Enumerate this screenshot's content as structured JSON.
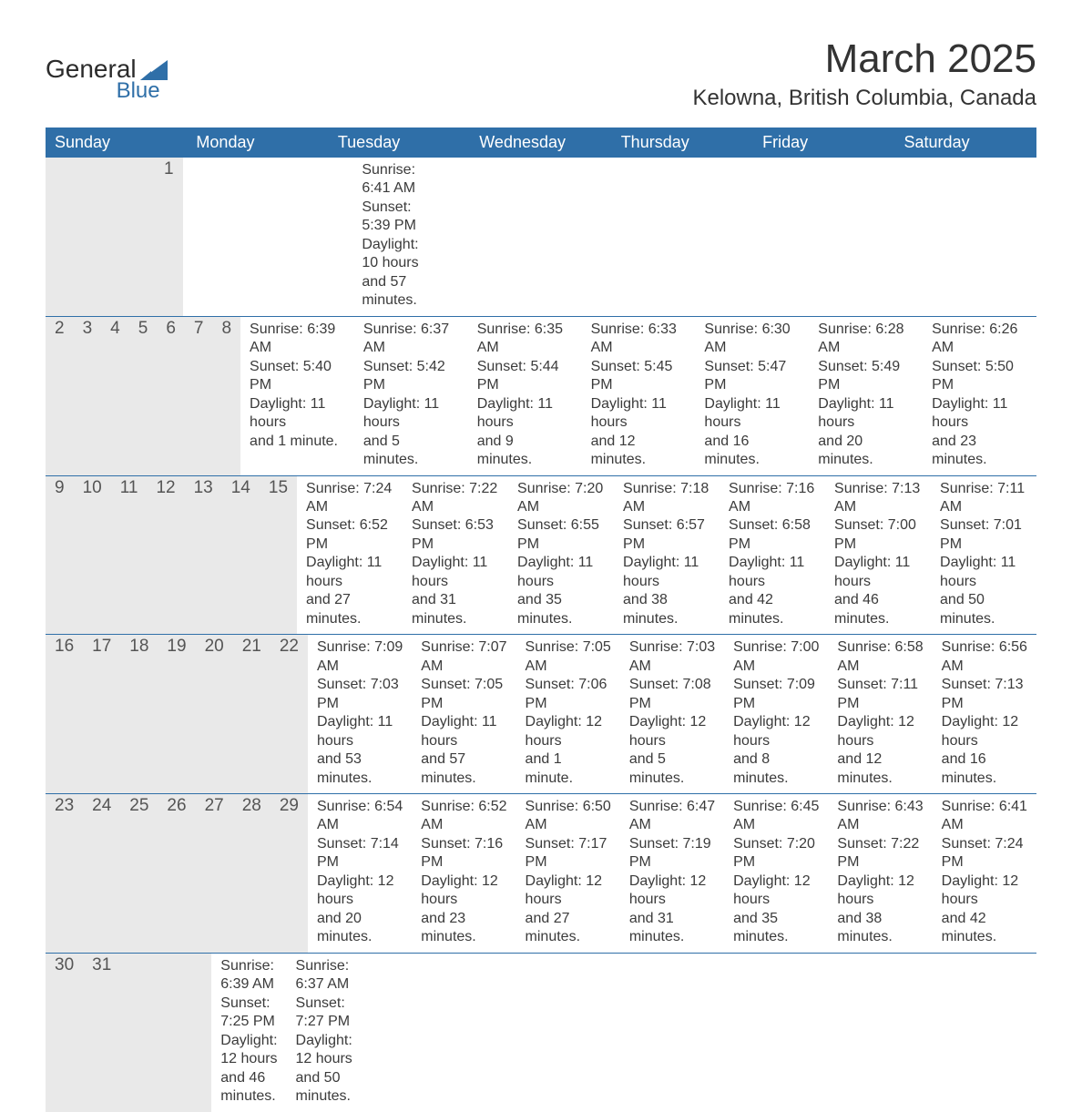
{
  "logo": {
    "text_top": "General",
    "text_bottom": "Blue",
    "accent_color": "#2f6fa8",
    "text_color": "#2b2b2b"
  },
  "title": {
    "main": "March 2025",
    "sub": "Kelowna, British Columbia, Canada"
  },
  "colors": {
    "header_bg": "#2f6fa8",
    "header_fg": "#ffffff",
    "strip_bg": "#e9e9e9",
    "text": "#3b3b3b",
    "row_border": "#2f6fa8"
  },
  "day_headers": [
    "Sunday",
    "Monday",
    "Tuesday",
    "Wednesday",
    "Thursday",
    "Friday",
    "Saturday"
  ],
  "weeks": [
    [
      null,
      null,
      null,
      null,
      null,
      null,
      {
        "n": "1",
        "sr": "Sunrise: 6:41 AM",
        "ss": "Sunset: 5:39 PM",
        "d1": "Daylight: 10 hours",
        "d2": "and 57 minutes."
      }
    ],
    [
      {
        "n": "2",
        "sr": "Sunrise: 6:39 AM",
        "ss": "Sunset: 5:40 PM",
        "d1": "Daylight: 11 hours",
        "d2": "and 1 minute."
      },
      {
        "n": "3",
        "sr": "Sunrise: 6:37 AM",
        "ss": "Sunset: 5:42 PM",
        "d1": "Daylight: 11 hours",
        "d2": "and 5 minutes."
      },
      {
        "n": "4",
        "sr": "Sunrise: 6:35 AM",
        "ss": "Sunset: 5:44 PM",
        "d1": "Daylight: 11 hours",
        "d2": "and 9 minutes."
      },
      {
        "n": "5",
        "sr": "Sunrise: 6:33 AM",
        "ss": "Sunset: 5:45 PM",
        "d1": "Daylight: 11 hours",
        "d2": "and 12 minutes."
      },
      {
        "n": "6",
        "sr": "Sunrise: 6:30 AM",
        "ss": "Sunset: 5:47 PM",
        "d1": "Daylight: 11 hours",
        "d2": "and 16 minutes."
      },
      {
        "n": "7",
        "sr": "Sunrise: 6:28 AM",
        "ss": "Sunset: 5:49 PM",
        "d1": "Daylight: 11 hours",
        "d2": "and 20 minutes."
      },
      {
        "n": "8",
        "sr": "Sunrise: 6:26 AM",
        "ss": "Sunset: 5:50 PM",
        "d1": "Daylight: 11 hours",
        "d2": "and 23 minutes."
      }
    ],
    [
      {
        "n": "9",
        "sr": "Sunrise: 7:24 AM",
        "ss": "Sunset: 6:52 PM",
        "d1": "Daylight: 11 hours",
        "d2": "and 27 minutes."
      },
      {
        "n": "10",
        "sr": "Sunrise: 7:22 AM",
        "ss": "Sunset: 6:53 PM",
        "d1": "Daylight: 11 hours",
        "d2": "and 31 minutes."
      },
      {
        "n": "11",
        "sr": "Sunrise: 7:20 AM",
        "ss": "Sunset: 6:55 PM",
        "d1": "Daylight: 11 hours",
        "d2": "and 35 minutes."
      },
      {
        "n": "12",
        "sr": "Sunrise: 7:18 AM",
        "ss": "Sunset: 6:57 PM",
        "d1": "Daylight: 11 hours",
        "d2": "and 38 minutes."
      },
      {
        "n": "13",
        "sr": "Sunrise: 7:16 AM",
        "ss": "Sunset: 6:58 PM",
        "d1": "Daylight: 11 hours",
        "d2": "and 42 minutes."
      },
      {
        "n": "14",
        "sr": "Sunrise: 7:13 AM",
        "ss": "Sunset: 7:00 PM",
        "d1": "Daylight: 11 hours",
        "d2": "and 46 minutes."
      },
      {
        "n": "15",
        "sr": "Sunrise: 7:11 AM",
        "ss": "Sunset: 7:01 PM",
        "d1": "Daylight: 11 hours",
        "d2": "and 50 minutes."
      }
    ],
    [
      {
        "n": "16",
        "sr": "Sunrise: 7:09 AM",
        "ss": "Sunset: 7:03 PM",
        "d1": "Daylight: 11 hours",
        "d2": "and 53 minutes."
      },
      {
        "n": "17",
        "sr": "Sunrise: 7:07 AM",
        "ss": "Sunset: 7:05 PM",
        "d1": "Daylight: 11 hours",
        "d2": "and 57 minutes."
      },
      {
        "n": "18",
        "sr": "Sunrise: 7:05 AM",
        "ss": "Sunset: 7:06 PM",
        "d1": "Daylight: 12 hours",
        "d2": "and 1 minute."
      },
      {
        "n": "19",
        "sr": "Sunrise: 7:03 AM",
        "ss": "Sunset: 7:08 PM",
        "d1": "Daylight: 12 hours",
        "d2": "and 5 minutes."
      },
      {
        "n": "20",
        "sr": "Sunrise: 7:00 AM",
        "ss": "Sunset: 7:09 PM",
        "d1": "Daylight: 12 hours",
        "d2": "and 8 minutes."
      },
      {
        "n": "21",
        "sr": "Sunrise: 6:58 AM",
        "ss": "Sunset: 7:11 PM",
        "d1": "Daylight: 12 hours",
        "d2": "and 12 minutes."
      },
      {
        "n": "22",
        "sr": "Sunrise: 6:56 AM",
        "ss": "Sunset: 7:13 PM",
        "d1": "Daylight: 12 hours",
        "d2": "and 16 minutes."
      }
    ],
    [
      {
        "n": "23",
        "sr": "Sunrise: 6:54 AM",
        "ss": "Sunset: 7:14 PM",
        "d1": "Daylight: 12 hours",
        "d2": "and 20 minutes."
      },
      {
        "n": "24",
        "sr": "Sunrise: 6:52 AM",
        "ss": "Sunset: 7:16 PM",
        "d1": "Daylight: 12 hours",
        "d2": "and 23 minutes."
      },
      {
        "n": "25",
        "sr": "Sunrise: 6:50 AM",
        "ss": "Sunset: 7:17 PM",
        "d1": "Daylight: 12 hours",
        "d2": "and 27 minutes."
      },
      {
        "n": "26",
        "sr": "Sunrise: 6:47 AM",
        "ss": "Sunset: 7:19 PM",
        "d1": "Daylight: 12 hours",
        "d2": "and 31 minutes."
      },
      {
        "n": "27",
        "sr": "Sunrise: 6:45 AM",
        "ss": "Sunset: 7:20 PM",
        "d1": "Daylight: 12 hours",
        "d2": "and 35 minutes."
      },
      {
        "n": "28",
        "sr": "Sunrise: 6:43 AM",
        "ss": "Sunset: 7:22 PM",
        "d1": "Daylight: 12 hours",
        "d2": "and 38 minutes."
      },
      {
        "n": "29",
        "sr": "Sunrise: 6:41 AM",
        "ss": "Sunset: 7:24 PM",
        "d1": "Daylight: 12 hours",
        "d2": "and 42 minutes."
      }
    ],
    [
      {
        "n": "30",
        "sr": "Sunrise: 6:39 AM",
        "ss": "Sunset: 7:25 PM",
        "d1": "Daylight: 12 hours",
        "d2": "and 46 minutes."
      },
      {
        "n": "31",
        "sr": "Sunrise: 6:37 AM",
        "ss": "Sunset: 7:27 PM",
        "d1": "Daylight: 12 hours",
        "d2": "and 50 minutes."
      },
      null,
      null,
      null,
      null,
      null
    ]
  ]
}
